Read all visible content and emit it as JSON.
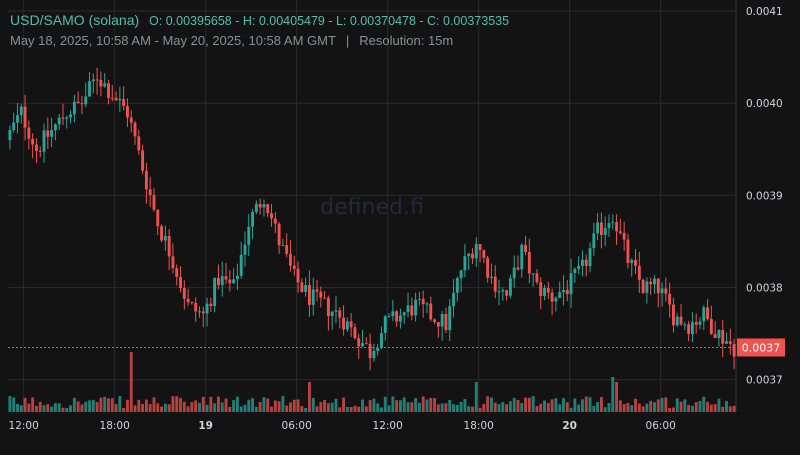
{
  "header": {
    "symbol": "USD/SAMO (solana)",
    "ohlc": "O: 0.00395658 - H: 0.00405479 - L: 0.00370478 - C: 0.00373535",
    "range": "May 18, 2025, 10:58 AM - May 20, 2025, 10:58 AM GMT",
    "separator": "|",
    "resolution": "Resolution: 15m"
  },
  "watermark": "defined.fi",
  "price_label": "0.0037",
  "colors": {
    "up": "#26a69a",
    "down": "#ef5350",
    "background": "#131313",
    "grid": "#2b2b2b",
    "text": "#d1d4dc"
  },
  "chart_data": {
    "type": "candlestick",
    "y_ticks": [
      "0.0041",
      "0.0040",
      "0.0039",
      "0.0038",
      "0.0037"
    ],
    "y_tick_values": [
      0.0041,
      0.004,
      0.0039,
      0.0038,
      0.0037
    ],
    "ylim": [
      0.003665,
      0.004112
    ],
    "x_ticks": [
      "12:00",
      "18:00",
      "19",
      "06:00",
      "12:00",
      "18:00",
      "20",
      "06:00"
    ],
    "x_tick_hours": [
      1.0333,
      7.0333,
      13.0333,
      19.0333,
      25.0333,
      31.0333,
      37.0333,
      43.0333
    ],
    "x_tick_bold": [
      false,
      false,
      true,
      false,
      false,
      false,
      true,
      false
    ],
    "x_range_hours": [
      0,
      48
    ],
    "last_price": 0.003735,
    "candle_interval": "15m",
    "anchors": [
      [
        0,
        0.00396
      ],
      [
        1,
        0.00399
      ],
      [
        2,
        0.00395
      ],
      [
        3,
        0.00397
      ],
      [
        4,
        0.00399
      ],
      [
        5,
        0.004
      ],
      [
        6,
        0.00403
      ],
      [
        7,
        0.00401
      ],
      [
        8,
        0.00399
      ],
      [
        9,
        0.00393
      ],
      [
        10,
        0.00387
      ],
      [
        11,
        0.00383
      ],
      [
        12,
        0.00378
      ],
      [
        13,
        0.00377
      ],
      [
        14,
        0.00381
      ],
      [
        15,
        0.0038
      ],
      [
        16,
        0.00387
      ],
      [
        17,
        0.0039
      ],
      [
        18,
        0.00385
      ],
      [
        19,
        0.00381
      ],
      [
        20,
        0.00379
      ],
      [
        21,
        0.00378
      ],
      [
        22,
        0.00377
      ],
      [
        23,
        0.00375
      ],
      [
        24,
        0.00373
      ],
      [
        25,
        0.00376
      ],
      [
        26,
        0.00377
      ],
      [
        27,
        0.00378
      ],
      [
        28,
        0.00377
      ],
      [
        29,
        0.00376
      ],
      [
        30,
        0.00382
      ],
      [
        31,
        0.00385
      ],
      [
        32,
        0.00381
      ],
      [
        33,
        0.00379
      ],
      [
        34,
        0.00384
      ],
      [
        35,
        0.0038
      ],
      [
        36,
        0.00379
      ],
      [
        37,
        0.0038
      ],
      [
        38,
        0.00382
      ],
      [
        39,
        0.00386
      ],
      [
        40,
        0.00388
      ],
      [
        41,
        0.00383
      ],
      [
        42,
        0.0038
      ],
      [
        43,
        0.0038
      ],
      [
        44,
        0.00377
      ],
      [
        45,
        0.00376
      ],
      [
        46,
        0.00377
      ],
      [
        47,
        0.00375
      ],
      [
        48,
        0.003735
      ]
    ],
    "volume_spikes": [
      [
        8.0,
        0.6
      ],
      [
        19.8,
        0.3
      ],
      [
        30.7,
        0.3
      ],
      [
        39.7,
        0.35
      ],
      [
        39.9,
        0.3
      ]
    ]
  }
}
